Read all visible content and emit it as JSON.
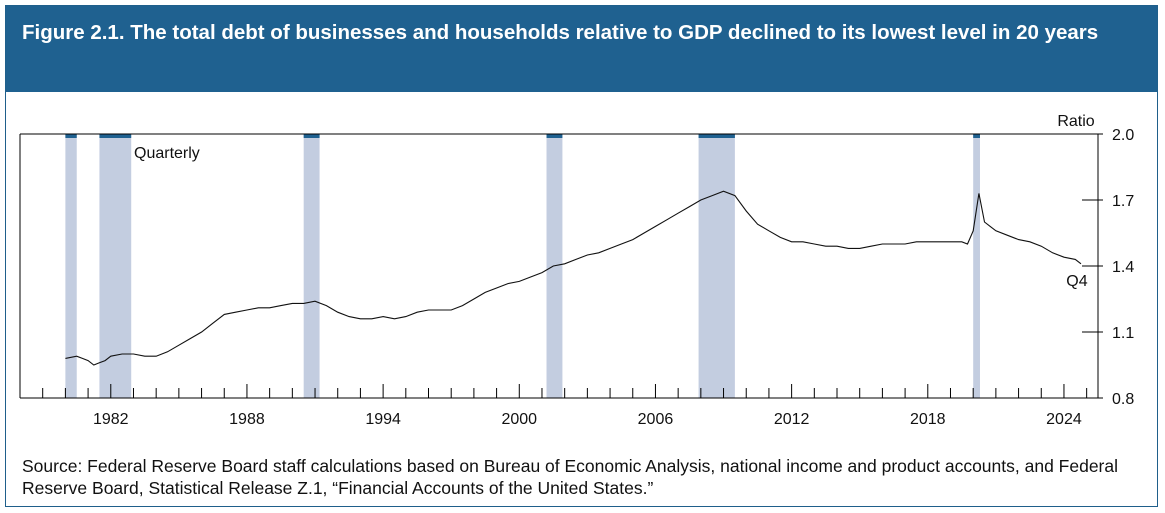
{
  "figure": {
    "title": "Figure 2.1. The total debt of businesses and households relative to GDP declined to its lowest level in 20 years",
    "source": "Source: Federal Reserve Board staff calculations based on Bureau of Economic Analysis, national income and product accounts, and Federal Reserve Board, Statistical Release Z.1, “Financial Accounts of the United States.”"
  },
  "chart_data": {
    "type": "line",
    "title": "Figure 2.1. The total debt of businesses and households relative to GDP declined to its lowest level in 20 years",
    "ylabel": "Ratio",
    "frequency_label": "Quarterly",
    "end_label": "Q4",
    "xlim": [
      1978.0,
      2025.5
    ],
    "ylim": [
      0.8,
      2.0
    ],
    "y_ticks": [
      0.8,
      1.1,
      1.4,
      1.7,
      2.0
    ],
    "y_tick_labels": [
      "0.8",
      "1.1",
      "1.4",
      "1.7",
      "2.0"
    ],
    "x_ticks": [
      1982,
      1988,
      1994,
      2000,
      2006,
      2012,
      2018,
      2024
    ],
    "x_tick_labels": [
      "1982",
      "1988",
      "1994",
      "2000",
      "2006",
      "2012",
      "2018",
      "2024"
    ],
    "recessions": [
      [
        1980.0,
        1980.5
      ],
      [
        1981.5,
        1982.9
      ],
      [
        1990.5,
        1991.2
      ],
      [
        2001.2,
        2001.9
      ],
      [
        2007.9,
        2009.5
      ],
      [
        2020.0,
        2020.3
      ]
    ],
    "series": [
      {
        "name": "Total debt of businesses and households relative to GDP",
        "x": [
          1980.0,
          1980.5,
          1980.75,
          1981.0,
          1981.25,
          1981.5,
          1981.75,
          1982.0,
          1982.5,
          1983.0,
          1983.5,
          1984.0,
          1984.5,
          1985.0,
          1985.5,
          1986.0,
          1986.5,
          1987.0,
          1987.5,
          1988.0,
          1988.5,
          1989.0,
          1989.5,
          1990.0,
          1990.5,
          1991.0,
          1991.5,
          1992.0,
          1992.5,
          1993.0,
          1993.5,
          1994.0,
          1994.5,
          1995.0,
          1995.5,
          1996.0,
          1996.5,
          1997.0,
          1997.5,
          1998.0,
          1998.5,
          1999.0,
          1999.5,
          2000.0,
          2000.5,
          2001.0,
          2001.5,
          2002.0,
          2002.5,
          2003.0,
          2003.5,
          2004.0,
          2004.5,
          2005.0,
          2005.5,
          2006.0,
          2006.5,
          2007.0,
          2007.5,
          2008.0,
          2008.5,
          2009.0,
          2009.5,
          2010.0,
          2010.5,
          2011.0,
          2011.5,
          2012.0,
          2012.5,
          2013.0,
          2013.5,
          2014.0,
          2014.5,
          2015.0,
          2015.5,
          2016.0,
          2016.5,
          2017.0,
          2017.5,
          2018.0,
          2018.5,
          2019.0,
          2019.5,
          2019.75,
          2020.0,
          2020.25,
          2020.5,
          2020.75,
          2021.0,
          2021.5,
          2022.0,
          2022.5,
          2023.0,
          2023.5,
          2024.0,
          2024.5,
          2024.75
        ],
        "values": [
          0.98,
          0.99,
          0.98,
          0.97,
          0.95,
          0.96,
          0.97,
          0.99,
          1.0,
          1.0,
          0.99,
          0.99,
          1.01,
          1.04,
          1.07,
          1.1,
          1.14,
          1.18,
          1.19,
          1.2,
          1.21,
          1.21,
          1.22,
          1.23,
          1.23,
          1.24,
          1.22,
          1.19,
          1.17,
          1.16,
          1.16,
          1.17,
          1.16,
          1.17,
          1.19,
          1.2,
          1.2,
          1.2,
          1.22,
          1.25,
          1.28,
          1.3,
          1.32,
          1.33,
          1.35,
          1.37,
          1.4,
          1.41,
          1.43,
          1.45,
          1.46,
          1.48,
          1.5,
          1.52,
          1.55,
          1.58,
          1.61,
          1.64,
          1.67,
          1.7,
          1.72,
          1.74,
          1.72,
          1.65,
          1.59,
          1.56,
          1.53,
          1.51,
          1.51,
          1.5,
          1.49,
          1.49,
          1.48,
          1.48,
          1.49,
          1.5,
          1.5,
          1.5,
          1.51,
          1.51,
          1.51,
          1.51,
          1.51,
          1.5,
          1.56,
          1.73,
          1.6,
          1.58,
          1.56,
          1.54,
          1.52,
          1.51,
          1.49,
          1.46,
          1.44,
          1.43,
          1.41
        ]
      }
    ]
  }
}
